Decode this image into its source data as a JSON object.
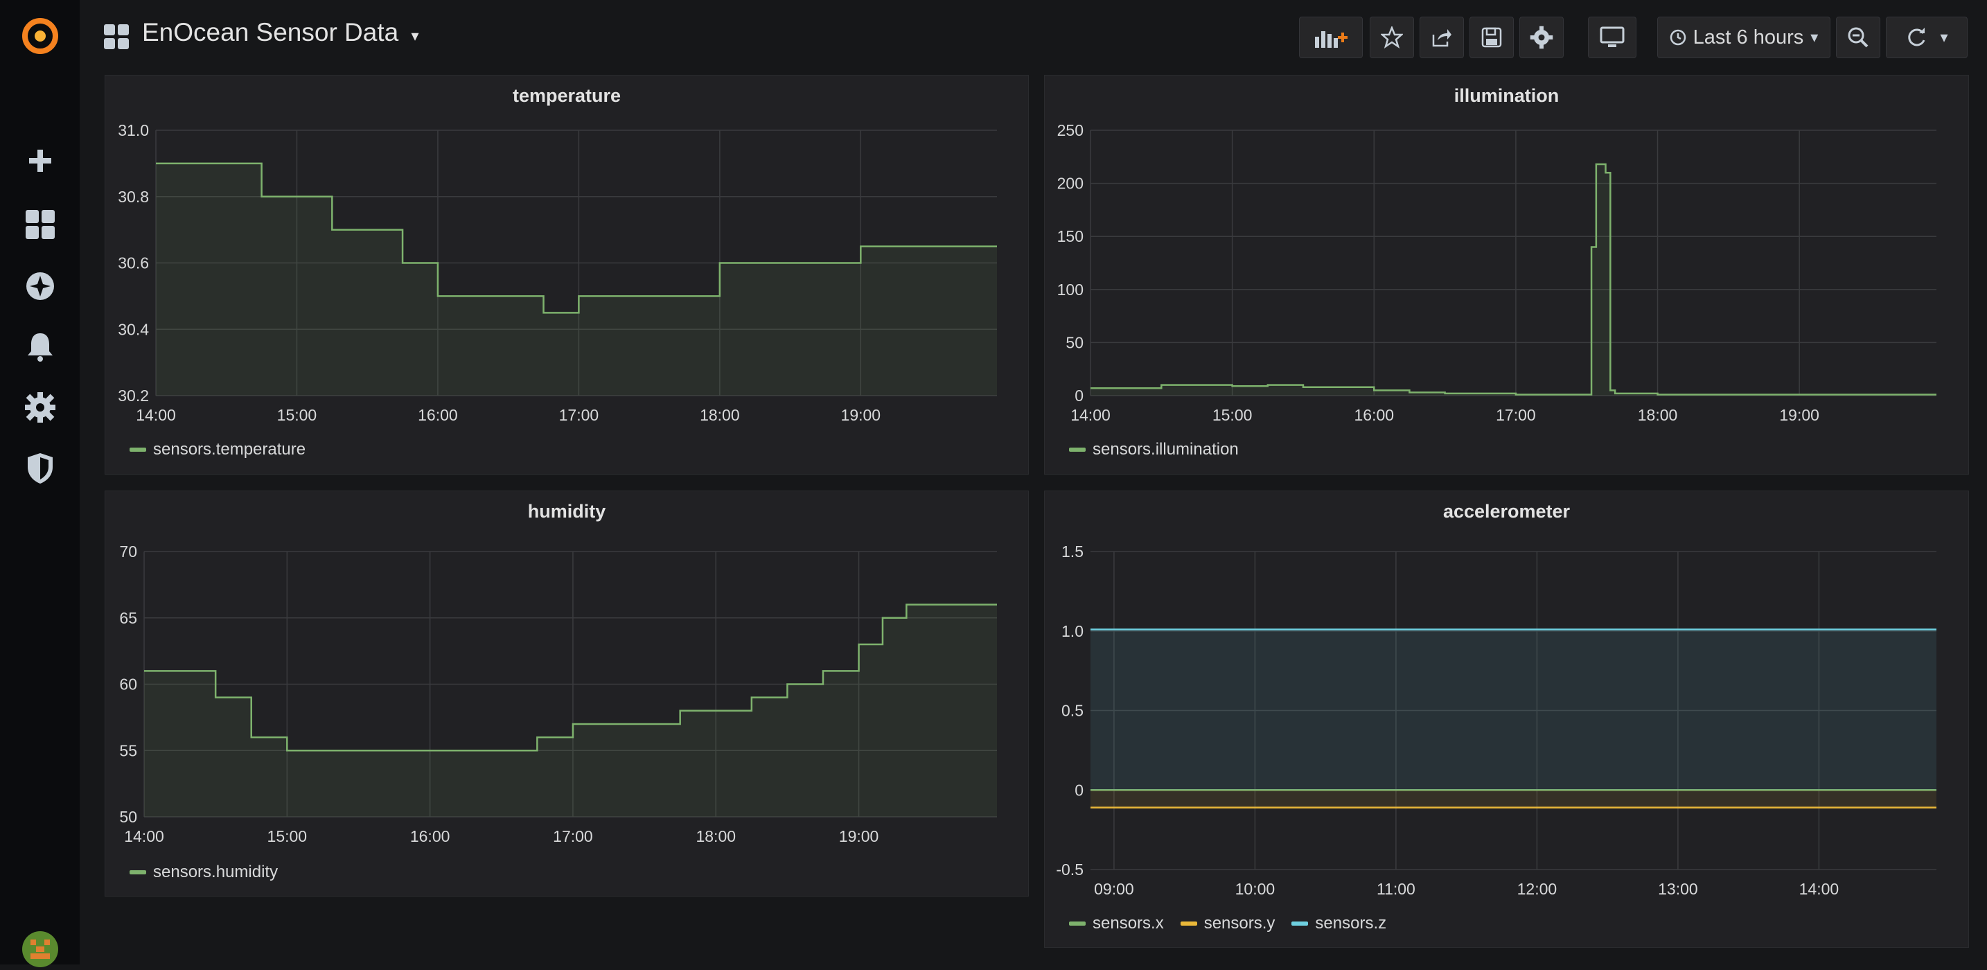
{
  "dashboard": {
    "title": "EnOcean Sensor Data"
  },
  "time_picker": {
    "label": "Last 6 hours"
  },
  "colors": {
    "green": "#7eb26d",
    "yellow": "#eab839",
    "blue": "#6ed0e0"
  },
  "icons": [
    "grafana-logo-icon",
    "plus-icon",
    "dashboards-icon",
    "explore-icon",
    "bell-icon",
    "gear-icon",
    "shield-icon",
    "user-avatar",
    "add-panel-icon",
    "star-icon",
    "share-icon",
    "save-icon",
    "settings-icon",
    "tv-icon",
    "clock-icon",
    "zoom-out-icon",
    "refresh-icon"
  ],
  "chart_data": [
    {
      "type": "line",
      "title": "temperature",
      "x": [
        "14:00",
        "14:15",
        "14:30",
        "14:45",
        "15:00",
        "15:15",
        "15:30",
        "15:45",
        "16:00",
        "16:15",
        "16:30",
        "16:45",
        "17:00",
        "17:15",
        "17:30",
        "17:45",
        "18:00",
        "18:15",
        "18:30",
        "18:45",
        "19:00",
        "19:15",
        "19:30",
        "19:45",
        "19:58"
      ],
      "xticks": [
        "14:00",
        "15:00",
        "16:00",
        "17:00",
        "18:00",
        "19:00"
      ],
      "yticks": [
        "31.0",
        "30.8",
        "30.6",
        "30.4",
        "30.2"
      ],
      "ylim": [
        30.2,
        31.0
      ],
      "series": [
        {
          "name": "sensors.temperature",
          "values": [
            30.9,
            30.9,
            30.9,
            30.8,
            30.8,
            30.7,
            30.7,
            30.6,
            30.5,
            30.5,
            30.5,
            30.45,
            30.5,
            30.5,
            30.5,
            30.5,
            30.6,
            30.6,
            30.6,
            30.6,
            30.65,
            30.65,
            30.65,
            30.65,
            30.65
          ]
        }
      ]
    },
    {
      "type": "line",
      "title": "illumination",
      "x": [
        "14:00",
        "14:30",
        "15:00",
        "15:15",
        "15:30",
        "16:00",
        "16:15",
        "16:30",
        "17:00",
        "17:30",
        "17:32",
        "17:34",
        "17:38",
        "17:40",
        "17:42",
        "18:00",
        "18:30",
        "19:00",
        "19:30",
        "19:58"
      ],
      "xticks": [
        "14:00",
        "15:00",
        "16:00",
        "17:00",
        "18:00",
        "19:00"
      ],
      "yticks": [
        "250",
        "200",
        "150",
        "100",
        "50",
        "0"
      ],
      "ylim": [
        0,
        250
      ],
      "series": [
        {
          "name": "sensors.illumination",
          "values": [
            7,
            10,
            9,
            10,
            8,
            5,
            3,
            2,
            1,
            1,
            140,
            218,
            210,
            5,
            2,
            1,
            1,
            1,
            1,
            1
          ]
        }
      ]
    },
    {
      "type": "line",
      "title": "humidity",
      "x": [
        "14:00",
        "14:15",
        "14:30",
        "14:45",
        "15:00",
        "15:30",
        "16:00",
        "16:30",
        "16:45",
        "17:00",
        "17:30",
        "17:45",
        "18:00",
        "18:15",
        "18:30",
        "18:45",
        "19:00",
        "19:10",
        "19:20",
        "19:58"
      ],
      "xticks": [
        "14:00",
        "15:00",
        "16:00",
        "17:00",
        "18:00",
        "19:00"
      ],
      "yticks": [
        "70",
        "65",
        "60",
        "55",
        "50"
      ],
      "ylim": [
        50,
        70
      ],
      "series": [
        {
          "name": "sensors.humidity",
          "values": [
            61,
            61,
            59,
            56,
            55,
            55,
            55,
            55,
            56,
            57,
            57,
            58,
            58,
            59,
            60,
            61,
            63,
            65,
            66,
            66
          ]
        }
      ]
    },
    {
      "type": "line",
      "title": "accelerometer",
      "x": [
        "08:50",
        "09:00",
        "10:00",
        "11:00",
        "12:00",
        "13:00",
        "14:00",
        "14:50"
      ],
      "xticks": [
        "09:00",
        "10:00",
        "11:00",
        "12:00",
        "13:00",
        "14:00"
      ],
      "yticks": [
        "1.5",
        "1.0",
        "0.5",
        "0",
        "-0.5"
      ],
      "ylim": [
        -0.5,
        1.5
      ],
      "series": [
        {
          "name": "sensors.x",
          "values": [
            0,
            0,
            0,
            0,
            0,
            0,
            0,
            0
          ]
        },
        {
          "name": "sensors.y",
          "values": [
            -0.11,
            -0.11,
            -0.11,
            -0.11,
            -0.11,
            -0.11,
            -0.11,
            -0.11
          ]
        },
        {
          "name": "sensors.z",
          "values": [
            1.01,
            1.01,
            1.01,
            1.01,
            1.01,
            1.01,
            1.01,
            1.01
          ]
        }
      ]
    }
  ]
}
